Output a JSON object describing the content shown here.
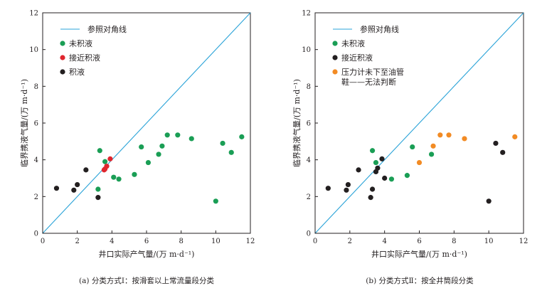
{
  "chart_data": [
    {
      "type": "scatter",
      "caption": "(a) 分类方式Ⅰ：按滑套以上常流量段分类",
      "xlabel": "井口实际产气量/(万 m·d⁻¹)",
      "ylabel": "临界携液气量/(万 m·d⁻¹)",
      "xlim": [
        0,
        12
      ],
      "ylim": [
        0,
        12
      ],
      "xticks": [
        "0",
        "2",
        "4",
        "6",
        "8",
        "10",
        "12"
      ],
      "yticks": [
        "0",
        "2",
        "4",
        "6",
        "8",
        "10",
        "12"
      ],
      "legend_position": "top-left",
      "reference_line": {
        "name": "参照对角线",
        "color": "#2aa3d8"
      },
      "series": [
        {
          "name": "未积液",
          "color": "#1a9e55",
          "points": [
            [
              3.3,
              4.5
            ],
            [
              3.6,
              3.9
            ],
            [
              5.7,
              4.7
            ],
            [
              6.9,
              4.75
            ],
            [
              7.2,
              5.35
            ],
            [
              7.8,
              5.35
            ],
            [
              8.6,
              5.15
            ],
            [
              10.4,
              4.9
            ],
            [
              11.5,
              5.25
            ],
            [
              10.9,
              4.4
            ],
            [
              6.7,
              4.3
            ],
            [
              6.1,
              3.85
            ],
            [
              5.3,
              3.2
            ],
            [
              4.1,
              3.05
            ],
            [
              4.4,
              2.95
            ],
            [
              3.2,
              2.4
            ],
            [
              10.0,
              1.75
            ]
          ]
        },
        {
          "name": "接近积液",
          "color": "#e0262e",
          "points": [
            [
              3.9,
              4.05
            ],
            [
              3.7,
              3.65
            ],
            [
              3.55,
              3.45
            ],
            [
              3.6,
              3.5
            ]
          ]
        },
        {
          "name": "积液",
          "color": "#231f20",
          "points": [
            [
              0.8,
              2.45
            ],
            [
              1.8,
              2.35
            ],
            [
              2.0,
              2.65
            ],
            [
              2.5,
              3.45
            ],
            [
              3.2,
              1.95
            ]
          ]
        }
      ]
    },
    {
      "type": "scatter",
      "caption": "(b) 分类方式Ⅱ：按全井筒段分类",
      "xlabel": "井口实际产气量/(万 m·d⁻¹)",
      "ylabel": "临界携液气量/(万 m·d⁻¹)",
      "xlim": [
        0,
        12
      ],
      "ylim": [
        0,
        12
      ],
      "xticks": [
        "0",
        "2",
        "4",
        "6",
        "8",
        "10",
        "12"
      ],
      "yticks": [
        "0",
        "2",
        "4",
        "6",
        "8",
        "10",
        "12"
      ],
      "legend_position": "top-left",
      "reference_line": {
        "name": "参照对角线",
        "color": "#2aa3d8"
      },
      "series": [
        {
          "name": "未积液",
          "color": "#1a9e55",
          "points": [
            [
              3.3,
              4.5
            ],
            [
              3.5,
              3.85
            ],
            [
              5.6,
              4.7
            ],
            [
              6.7,
              4.3
            ],
            [
              5.3,
              3.15
            ],
            [
              4.4,
              2.95
            ]
          ]
        },
        {
          "name": "接近积液",
          "color": "#231f20",
          "points": [
            [
              0.75,
              2.45
            ],
            [
              1.8,
              2.35
            ],
            [
              1.9,
              2.65
            ],
            [
              2.5,
              3.45
            ],
            [
              3.2,
              1.95
            ],
            [
              3.3,
              2.4
            ],
            [
              3.5,
              3.35
            ],
            [
              3.6,
              3.55
            ],
            [
              3.85,
              4.05
            ],
            [
              4.0,
              3.0
            ],
            [
              10.0,
              1.75
            ],
            [
              10.4,
              4.9
            ],
            [
              10.8,
              4.4
            ]
          ]
        },
        {
          "name": "压力计未下至油管鞋——无法判断",
          "legend_lines": [
            "压力计未下至油管",
            "鞋——无法判断"
          ],
          "color": "#f28b24",
          "points": [
            [
              6.0,
              3.85
            ],
            [
              6.8,
              4.75
            ],
            [
              7.2,
              5.35
            ],
            [
              7.7,
              5.35
            ],
            [
              8.6,
              5.15
            ],
            [
              11.5,
              5.25
            ]
          ]
        }
      ]
    }
  ]
}
